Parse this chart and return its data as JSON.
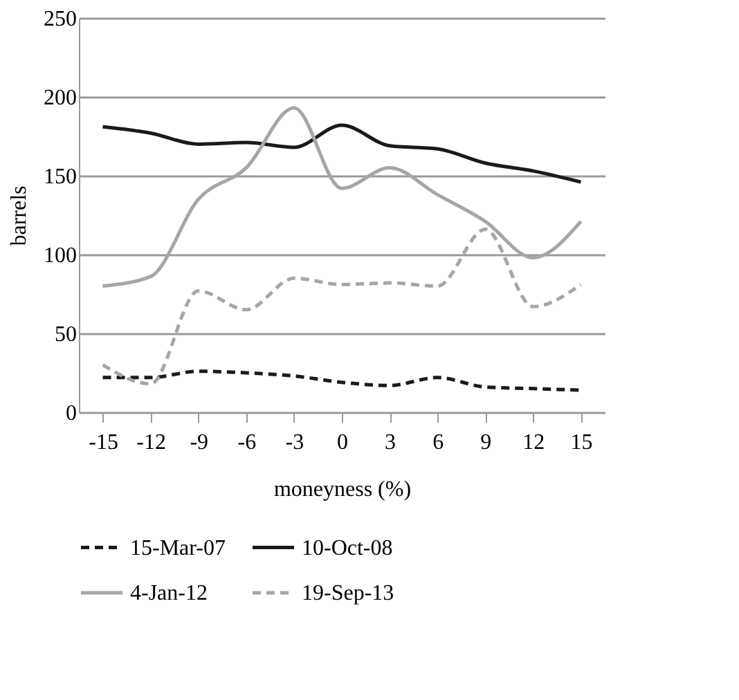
{
  "chart_data": {
    "type": "line",
    "xlabel": "moneyness (%)",
    "ylabel": "barrels",
    "categories": [
      "-15",
      "-12",
      "-9",
      "-6",
      "-3",
      "0",
      "3",
      "6",
      "9",
      "12",
      "15"
    ],
    "ylim": [
      0,
      250
    ],
    "yticks": [
      0,
      50,
      100,
      150,
      200,
      250
    ],
    "grid": "y",
    "legend": "bottom",
    "marker": "none",
    "series": [
      {
        "name": "15-Mar-07",
        "color": "#1a1a1a",
        "line_style": "dashed",
        "values": [
          22,
          22,
          26,
          25,
          23,
          19,
          17,
          22,
          16,
          15,
          14
        ]
      },
      {
        "name": "10-Oct-08",
        "color": "#1a1a1a",
        "line_style": "solid",
        "values": [
          181,
          177,
          170,
          171,
          168,
          182,
          169,
          167,
          158,
          153,
          146
        ]
      },
      {
        "name": "4-Jan-12",
        "color": "#a6a6a6",
        "line_style": "solid",
        "values": [
          80,
          86,
          135,
          155,
          193,
          142,
          155,
          138,
          121,
          98,
          121
        ]
      },
      {
        "name": "19-Sep-13",
        "color": "#a6a6a6",
        "line_style": "dashed",
        "values": [
          30,
          18,
          77,
          65,
          85,
          81,
          82,
          80,
          116,
          67,
          81
        ]
      }
    ]
  }
}
